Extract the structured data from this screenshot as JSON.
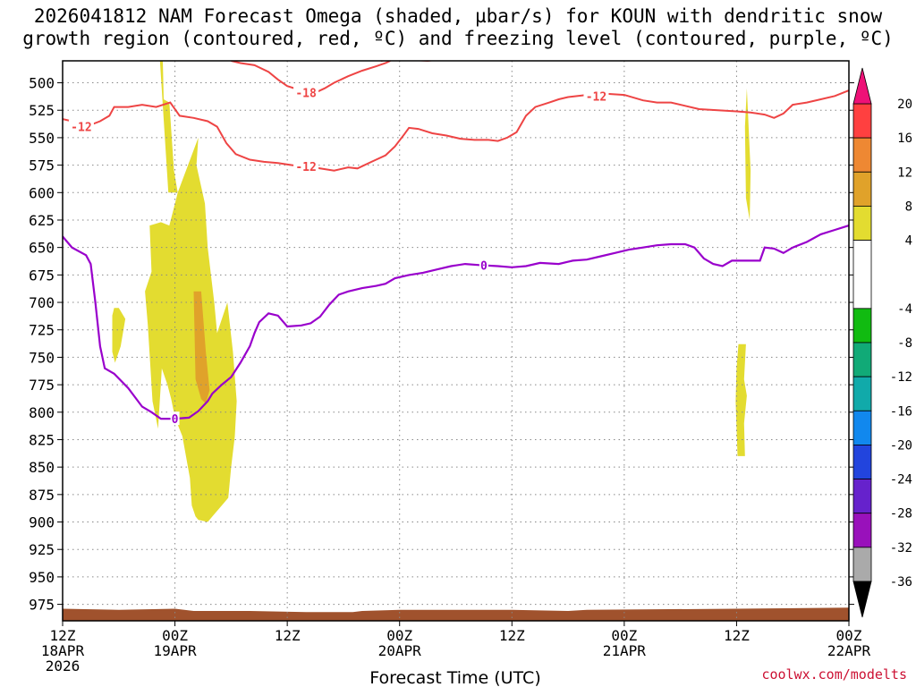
{
  "title_line1": "2026041812 NAM Forecast Omega (shaded, µbar/s) for KOUN with dendritic snow",
  "title_line2": "growth region (contoured, red, ºC) and freezing level (contoured, purple, ºC)",
  "credit": "coolwx.com/modelts",
  "colors": {
    "omega_pos_4_8": "#e3dc30",
    "omega_pos_8_12": "#e0a22a",
    "temp_contour": "#ee4444",
    "freezing_contour": "#9900cc",
    "ground": "#a0522d",
    "grid": "#888888"
  },
  "chart_data": {
    "type": "time-height cross-section",
    "x_unit": "forecast hour",
    "x_range": [
      0,
      84
    ],
    "y_unit": "hPa",
    "y_range": [
      480,
      990
    ],
    "xlabel": "Forecast Time (UTC)",
    "x_ticks": [
      {
        "hour": 0,
        "line1": "12Z",
        "line2": "18APR",
        "line3": "2026"
      },
      {
        "hour": 12,
        "line1": "00Z",
        "line2": "19APR",
        "line3": ""
      },
      {
        "hour": 24,
        "line1": "12Z",
        "line2": "",
        "line3": ""
      },
      {
        "hour": 36,
        "line1": "00Z",
        "line2": "20APR",
        "line3": ""
      },
      {
        "hour": 48,
        "line1": "12Z",
        "line2": "",
        "line3": ""
      },
      {
        "hour": 60,
        "line1": "00Z",
        "line2": "21APR",
        "line3": ""
      },
      {
        "hour": 72,
        "line1": "12Z",
        "line2": "",
        "line3": ""
      },
      {
        "hour": 84,
        "line1": "00Z",
        "line2": "22APR",
        "line3": ""
      }
    ],
    "y_ticks": [
      500,
      525,
      550,
      575,
      600,
      625,
      650,
      675,
      700,
      725,
      750,
      775,
      800,
      825,
      850,
      875,
      900,
      925,
      950,
      975
    ],
    "colorbar": {
      "label_values": [
        20,
        16,
        12,
        8,
        4,
        -4,
        -8,
        -12,
        -16,
        -20,
        -24,
        -28,
        -32,
        -36
      ],
      "segments": [
        {
          "from": 16,
          "to": 20,
          "color": "#ff4040"
        },
        {
          "from": 12,
          "to": 16,
          "color": "#ee8833"
        },
        {
          "from": 8,
          "to": 12,
          "color": "#e0a22a"
        },
        {
          "from": 4,
          "to": 8,
          "color": "#e3dc30"
        },
        {
          "from": -4,
          "to": 4,
          "color": "#ffffff"
        },
        {
          "from": -8,
          "to": -4,
          "color": "#11bb11"
        },
        {
          "from": -12,
          "to": -8,
          "color": "#11aa77"
        },
        {
          "from": -16,
          "to": -12,
          "color": "#11aaaa"
        },
        {
          "from": -20,
          "to": -16,
          "color": "#1188ee"
        },
        {
          "from": -24,
          "to": -20,
          "color": "#2244dd"
        },
        {
          "from": -28,
          "to": -24,
          "color": "#6622cc"
        },
        {
          "from": -32,
          "to": -28,
          "color": "#9911bb"
        },
        {
          "from": -36,
          "to": -32,
          "color": "#aaaaaa"
        }
      ],
      "top_arrow_color": "#ee1177",
      "bottom_arrow_color": "#000000"
    },
    "omega_regions": [
      {
        "level": "4-8",
        "polygon": [
          [
            9.7,
            480
          ],
          [
            10.7,
            480
          ],
          [
            10.8,
            515
          ],
          [
            11.4,
            518
          ],
          [
            11.9,
            580
          ],
          [
            12.3,
            600
          ],
          [
            11.3,
            600
          ],
          [
            10.4,
            480
          ]
        ]
      },
      {
        "level": "4-8",
        "polygon": [
          [
            12.3,
            600
          ],
          [
            14.5,
            550
          ],
          [
            14.3,
            575
          ],
          [
            15.2,
            610
          ],
          [
            15.5,
            650
          ],
          [
            16.2,
            700
          ],
          [
            16.5,
            728
          ],
          [
            17.6,
            700
          ],
          [
            18.2,
            745
          ],
          [
            18.6,
            790
          ],
          [
            18.4,
            822
          ],
          [
            18.0,
            850
          ],
          [
            17.7,
            878
          ],
          [
            17.0,
            885
          ],
          [
            16.2,
            893
          ],
          [
            15.5,
            900
          ],
          [
            14.5,
            898
          ],
          [
            14.2,
            895
          ],
          [
            13.8,
            885
          ],
          [
            13.6,
            860
          ],
          [
            12.8,
            822
          ],
          [
            12.0,
            805
          ],
          [
            11.6,
            788
          ],
          [
            11.2,
            775
          ],
          [
            10.6,
            760
          ],
          [
            10.2,
            815
          ],
          [
            9.6,
            790
          ],
          [
            9.1,
            720
          ],
          [
            8.8,
            690
          ],
          [
            9.5,
            672
          ],
          [
            9.3,
            630
          ],
          [
            10.5,
            627
          ],
          [
            11.4,
            630
          ],
          [
            12.0,
            610
          ]
        ]
      },
      {
        "level": "4-8",
        "polygon": [
          [
            5.5,
            705
          ],
          [
            6.0,
            705
          ],
          [
            6.7,
            715
          ],
          [
            6.2,
            740
          ],
          [
            5.6,
            755
          ],
          [
            5.3,
            745
          ],
          [
            5.3,
            712
          ]
        ]
      },
      {
        "level": "8-12",
        "polygon": [
          [
            14.0,
            690
          ],
          [
            14.8,
            690
          ],
          [
            15.3,
            745
          ],
          [
            15.7,
            780
          ],
          [
            15.3,
            792
          ],
          [
            14.8,
            788
          ],
          [
            14.2,
            770
          ]
        ]
      },
      {
        "level": "4-8",
        "polygon": [
          [
            73.1,
            505
          ],
          [
            73.5,
            580
          ],
          [
            73.4,
            625
          ],
          [
            73.0,
            605
          ],
          [
            72.9,
            540
          ]
        ]
      },
      {
        "level": "4-8",
        "polygon": [
          [
            72.2,
            738
          ],
          [
            73.0,
            738
          ],
          [
            72.8,
            770
          ],
          [
            73.1,
            785
          ],
          [
            72.8,
            810
          ],
          [
            72.9,
            840
          ],
          [
            72.1,
            840
          ],
          [
            71.9,
            790
          ],
          [
            72.0,
            760
          ]
        ]
      }
    ],
    "temperature_contours": [
      {
        "value": -12,
        "label": "-12",
        "label_at": [
          2.0,
          540
        ],
        "points": [
          [
            0,
            533
          ],
          [
            1.0,
            535
          ],
          [
            2.5,
            540
          ],
          [
            4.0,
            535
          ],
          [
            5.0,
            530
          ],
          [
            5.5,
            522
          ],
          [
            7.0,
            522
          ],
          [
            8.5,
            520
          ],
          [
            10.0,
            522
          ],
          [
            11.5,
            518
          ],
          [
            12.5,
            530
          ],
          [
            14.0,
            532
          ],
          [
            15.5,
            535
          ],
          [
            16.5,
            540
          ],
          [
            17.5,
            555
          ],
          [
            18.5,
            565
          ],
          [
            20.0,
            570
          ],
          [
            21.5,
            572
          ],
          [
            23.0,
            573
          ],
          [
            24.5,
            575
          ],
          [
            26.0,
            576
          ],
          [
            27.5,
            578
          ],
          [
            29.0,
            580
          ],
          [
            30.5,
            577
          ],
          [
            31.5,
            578
          ],
          [
            33.0,
            572
          ],
          [
            34.5,
            566
          ],
          [
            35.5,
            558
          ],
          [
            36.5,
            547
          ],
          [
            37.0,
            541
          ],
          [
            38.0,
            542
          ],
          [
            39.5,
            546
          ],
          [
            41.0,
            548
          ],
          [
            42.5,
            551
          ],
          [
            44.0,
            552
          ],
          [
            45.5,
            552
          ],
          [
            46.5,
            553
          ],
          [
            47.5,
            550
          ],
          [
            48.5,
            545
          ],
          [
            49.5,
            530
          ],
          [
            50.5,
            522
          ],
          [
            52.0,
            518
          ],
          [
            53.0,
            515
          ],
          [
            54.0,
            513
          ],
          [
            56.0,
            511
          ],
          [
            58.0,
            510
          ],
          [
            60.0,
            511
          ],
          [
            62.0,
            516
          ],
          [
            63.5,
            518
          ],
          [
            65.0,
            518
          ],
          [
            66.5,
            521
          ],
          [
            68.0,
            524
          ],
          [
            70.0,
            525
          ],
          [
            72.0,
            526
          ],
          [
            73.5,
            527
          ],
          [
            75.0,
            529
          ],
          [
            76.0,
            532
          ],
          [
            77.0,
            528
          ],
          [
            78.0,
            520
          ],
          [
            79.5,
            518
          ],
          [
            81.0,
            515
          ],
          [
            82.5,
            512
          ],
          [
            84.0,
            507
          ]
        ]
      },
      {
        "value": -12,
        "label": "-12",
        "label_at": [
          26.0,
          576
        ],
        "points": []
      },
      {
        "value": -12,
        "label": "-12",
        "label_at": [
          57.0,
          512
        ],
        "points": []
      },
      {
        "value": -18,
        "label": "-18",
        "label_at": [
          26.0,
          509
        ],
        "points": [
          [
            18.0,
            480
          ],
          [
            19.0,
            482
          ],
          [
            20.5,
            484
          ],
          [
            22.0,
            490
          ],
          [
            23.0,
            497
          ],
          [
            24.0,
            503
          ],
          [
            25.5,
            507
          ],
          [
            27.0,
            509
          ],
          [
            28.0,
            505
          ],
          [
            29.0,
            500
          ],
          [
            30.5,
            494
          ],
          [
            32.0,
            489
          ],
          [
            33.5,
            485
          ],
          [
            34.5,
            482
          ],
          [
            35.0,
            480
          ]
        ]
      },
      {
        "value": -18,
        "label": "",
        "label_at": null,
        "points": [
          [
            34.0,
            480
          ],
          [
            35.5,
            478
          ],
          [
            37.0,
            479
          ],
          [
            39.0,
            480
          ],
          [
            41.0,
            478
          ]
        ]
      }
    ],
    "freezing_contour": {
      "value": 0,
      "label": "0",
      "labels_at": [
        [
          12.0,
          806
        ],
        [
          45.0,
          666
        ]
      ],
      "points": [
        [
          0,
          640
        ],
        [
          1.0,
          650
        ],
        [
          2.5,
          657
        ],
        [
          3.0,
          665
        ],
        [
          3.5,
          700
        ],
        [
          4.0,
          740
        ],
        [
          4.5,
          760
        ],
        [
          5.5,
          765
        ],
        [
          7.0,
          778
        ],
        [
          8.5,
          795
        ],
        [
          9.5,
          800
        ],
        [
          10.5,
          806
        ],
        [
          12.0,
          806
        ],
        [
          13.5,
          805
        ],
        [
          14.5,
          799
        ],
        [
          15.5,
          790
        ],
        [
          16.0,
          783
        ],
        [
          17.0,
          775
        ],
        [
          18.0,
          768
        ],
        [
          19.0,
          755
        ],
        [
          20.0,
          740
        ],
        [
          20.5,
          728
        ],
        [
          21.0,
          718
        ],
        [
          22.0,
          710
        ],
        [
          23.0,
          712
        ],
        [
          24.0,
          722
        ],
        [
          25.5,
          721
        ],
        [
          26.5,
          719
        ],
        [
          27.5,
          713
        ],
        [
          28.5,
          702
        ],
        [
          29.5,
          693
        ],
        [
          30.5,
          690
        ],
        [
          32.0,
          687
        ],
        [
          33.5,
          685
        ],
        [
          34.5,
          683
        ],
        [
          35.5,
          678
        ],
        [
          37.0,
          675
        ],
        [
          38.5,
          673
        ],
        [
          40.0,
          670
        ],
        [
          41.5,
          667
        ],
        [
          43.0,
          665
        ],
        [
          44.5,
          666
        ],
        [
          46.5,
          667
        ],
        [
          48.0,
          668
        ],
        [
          49.5,
          667
        ],
        [
          51.0,
          664
        ],
        [
          53.0,
          665
        ],
        [
          54.5,
          662
        ],
        [
          56.0,
          661
        ],
        [
          57.5,
          658
        ],
        [
          59.0,
          655
        ],
        [
          60.5,
          652
        ],
        [
          62.0,
          650
        ],
        [
          63.5,
          648
        ],
        [
          65.0,
          647
        ],
        [
          66.5,
          647
        ],
        [
          67.5,
          650
        ],
        [
          68.5,
          660
        ],
        [
          69.5,
          665
        ],
        [
          70.5,
          667
        ],
        [
          71.5,
          662
        ],
        [
          72.5,
          662
        ],
        [
          73.5,
          662
        ],
        [
          74.5,
          662
        ],
        [
          75.0,
          650
        ],
        [
          76.0,
          651
        ],
        [
          77.0,
          655
        ],
        [
          78.0,
          650
        ],
        [
          79.5,
          645
        ],
        [
          81.0,
          638
        ],
        [
          82.5,
          634
        ],
        [
          84.0,
          630
        ]
      ]
    },
    "ground_fill": {
      "level_hpa_by_hour": [
        [
          0,
          979
        ],
        [
          6,
          980
        ],
        [
          12,
          979
        ],
        [
          14,
          981
        ],
        [
          20,
          981
        ],
        [
          26,
          982
        ],
        [
          31,
          982
        ],
        [
          32,
          981
        ],
        [
          36,
          980
        ],
        [
          48,
          980
        ],
        [
          54,
          981
        ],
        [
          56,
          980
        ],
        [
          72,
          979
        ],
        [
          84,
          978
        ]
      ]
    }
  }
}
